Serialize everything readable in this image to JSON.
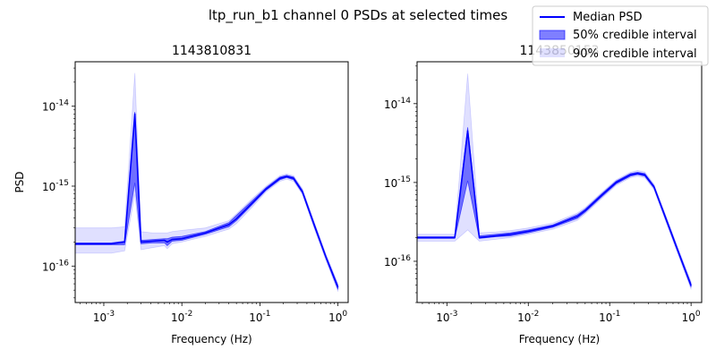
{
  "figure": {
    "suptitle": "ltp_run_b1 channel 0 PSDs at selected times"
  },
  "legend": {
    "placement": "upper-right",
    "entries": [
      {
        "label": "Median PSD",
        "kind": "line",
        "color": "#0000ff"
      },
      {
        "label": "50% credible interval",
        "kind": "patch",
        "color": "#0000ff",
        "alpha": 0.5
      },
      {
        "label": "90% credible interval",
        "kind": "patch",
        "color": "#0000ff",
        "alpha": 0.12
      }
    ]
  },
  "colors": {
    "median": "#0000ff",
    "ci50": "#0000ff",
    "ci90": "#0000ff"
  },
  "chart_data": [
    {
      "type": "line",
      "title": "1143810831",
      "xlabel": "Frequency (Hz)",
      "ylabel": "PSD",
      "xscale": "log",
      "yscale": "log",
      "xlim": [
        0.00043,
        1.35
      ],
      "ylim": [
        3.5e-17,
        3.6e-14
      ],
      "grid": false,
      "x_ticks": [
        {
          "value": 0.001,
          "exp": "-3"
        },
        {
          "value": 0.01,
          "exp": "-2"
        },
        {
          "value": 0.1,
          "exp": "-1"
        },
        {
          "value": 1,
          "exp": "0"
        }
      ],
      "y_ticks": [
        {
          "value": 1e-16,
          "exp": "-16"
        },
        {
          "value": 1e-15,
          "exp": "-15"
        },
        {
          "value": 1e-14,
          "exp": "-14"
        }
      ],
      "tick_base": "10",
      "x": [
        0.00043,
        0.00125,
        0.00185,
        0.0025,
        0.003,
        0.0042,
        0.006,
        0.0065,
        0.0075,
        0.01,
        0.02,
        0.04,
        0.05,
        0.08,
        0.12,
        0.18,
        0.22,
        0.27,
        0.35,
        0.5,
        0.7,
        1.0
      ],
      "series": [
        {
          "median": [
            1.9e-16,
            1.9e-16,
            2e-16,
            8e-15,
            2e-16,
            2.05e-16,
            2.1e-16,
            2e-16,
            2.15e-16,
            2.2e-16,
            2.6e-16,
            3.3e-16,
            3.9e-16,
            6.2e-16,
            9.2e-16,
            1.25e-15,
            1.32e-15,
            1.25e-15,
            8.5e-16,
            3.2e-16,
            1.3e-16,
            5.4e-17
          ],
          "ci50_lo": [
            1.85e-16,
            1.85e-16,
            1.85e-16,
            1.1e-15,
            1.9e-16,
            1.95e-16,
            1.95e-16,
            1.8e-16,
            2.05e-16,
            2.1e-16,
            2.5e-16,
            3.1e-16,
            3.7e-16,
            5.9e-16,
            8.9e-16,
            1.2e-15,
            1.28e-15,
            1.2e-15,
            8.2e-16,
            3.05e-16,
            1.25e-16,
            5.1e-17
          ],
          "ci50_hi": [
            1.95e-16,
            1.95e-16,
            2.05e-16,
            8.5e-15,
            2.1e-16,
            2.15e-16,
            2.2e-16,
            2.2e-16,
            2.3e-16,
            2.35e-16,
            2.7e-16,
            3.5e-16,
            4.3e-16,
            6.6e-16,
            9.6e-16,
            1.3e-15,
            1.37e-15,
            1.3e-15,
            8.9e-16,
            3.35e-16,
            1.35e-16,
            5.7e-17
          ],
          "ci90_lo": [
            1.45e-16,
            1.45e-16,
            1.55e-16,
            8e-16,
            1.6e-16,
            1.7e-16,
            1.8e-16,
            1.65e-16,
            1.9e-16,
            2e-16,
            2.35e-16,
            2.9e-16,
            3.4e-16,
            5.5e-16,
            8.5e-16,
            1.15e-15,
            1.22e-15,
            1.15e-15,
            7.9e-16,
            2.9e-16,
            1.18e-16,
            4.8e-17
          ],
          "ci90_hi": [
            3e-16,
            3e-16,
            3.1e-16,
            2.6e-14,
            2.7e-16,
            2.6e-16,
            2.6e-16,
            2.6e-16,
            2.7e-16,
            2.8e-16,
            3e-16,
            3.7e-16,
            4.5e-16,
            7e-16,
            1e-15,
            1.35e-15,
            1.42e-15,
            1.35e-15,
            9.3e-16,
            3.5e-16,
            1.42e-16,
            6e-17
          ]
        }
      ]
    },
    {
      "type": "line",
      "title": "1143850153",
      "xlabel": "Frequency (Hz)",
      "ylabel": "",
      "xscale": "log",
      "yscale": "log",
      "xlim": [
        0.00043,
        1.35
      ],
      "ylim": [
        3e-17,
        3.4e-14
      ],
      "grid": false,
      "x_ticks": [
        {
          "value": 0.001,
          "exp": "-3"
        },
        {
          "value": 0.01,
          "exp": "-2"
        },
        {
          "value": 0.1,
          "exp": "-1"
        },
        {
          "value": 1,
          "exp": "0"
        }
      ],
      "y_ticks": [
        {
          "value": 1e-16,
          "exp": "-16"
        },
        {
          "value": 1e-15,
          "exp": "-15"
        },
        {
          "value": 1e-14,
          "exp": "-14"
        }
      ],
      "tick_base": "10",
      "x": [
        0.00043,
        0.00125,
        0.0018,
        0.0025,
        0.004,
        0.006,
        0.01,
        0.02,
        0.04,
        0.05,
        0.08,
        0.12,
        0.18,
        0.22,
        0.27,
        0.35,
        0.5,
        0.7,
        1.0
      ],
      "series": [
        {
          "median": [
            2e-16,
            2e-16,
            4.5e-15,
            2e-16,
            2.1e-16,
            2.2e-16,
            2.4e-16,
            2.8e-16,
            3.7e-16,
            4.4e-16,
            6.9e-16,
            1e-15,
            1.25e-15,
            1.3e-15,
            1.25e-15,
            8.8e-16,
            3.3e-16,
            1.3e-16,
            4.9e-17
          ],
          "ci50_lo": [
            1.95e-16,
            1.95e-16,
            1.05e-15,
            1.95e-16,
            2.05e-16,
            2.1e-16,
            2.3e-16,
            2.7e-16,
            3.5e-16,
            4.2e-16,
            6.6e-16,
            9.6e-16,
            1.2e-15,
            1.26e-15,
            1.2e-15,
            8.5e-16,
            3.15e-16,
            1.25e-16,
            4.7e-17
          ],
          "ci50_hi": [
            2.05e-16,
            2.05e-16,
            5e-15,
            2.1e-16,
            2.2e-16,
            2.3e-16,
            2.5e-16,
            2.9e-16,
            3.9e-16,
            4.6e-16,
            7.2e-16,
            1.04e-15,
            1.3e-15,
            1.35e-15,
            1.3e-15,
            9.1e-16,
            3.45e-16,
            1.36e-16,
            5.2e-17
          ],
          "ci90_lo": [
            1.8e-16,
            1.8e-16,
            2.5e-16,
            1.8e-16,
            1.9e-16,
            2e-16,
            2.2e-16,
            2.55e-16,
            3.3e-16,
            4e-16,
            6.3e-16,
            9.2e-16,
            1.15e-15,
            1.2e-15,
            1.15e-15,
            8.1e-16,
            3e-16,
            1.18e-16,
            4.4e-17
          ],
          "ci90_hi": [
            2.2e-16,
            2.2e-16,
            2.4e-14,
            2.3e-16,
            2.35e-16,
            2.45e-16,
            2.65e-16,
            3.05e-16,
            4.1e-16,
            4.8e-16,
            7.5e-16,
            1.08e-15,
            1.35e-15,
            1.42e-15,
            1.36e-15,
            9.5e-16,
            3.6e-16,
            1.42e-16,
            5.5e-17
          ]
        }
      ]
    }
  ]
}
